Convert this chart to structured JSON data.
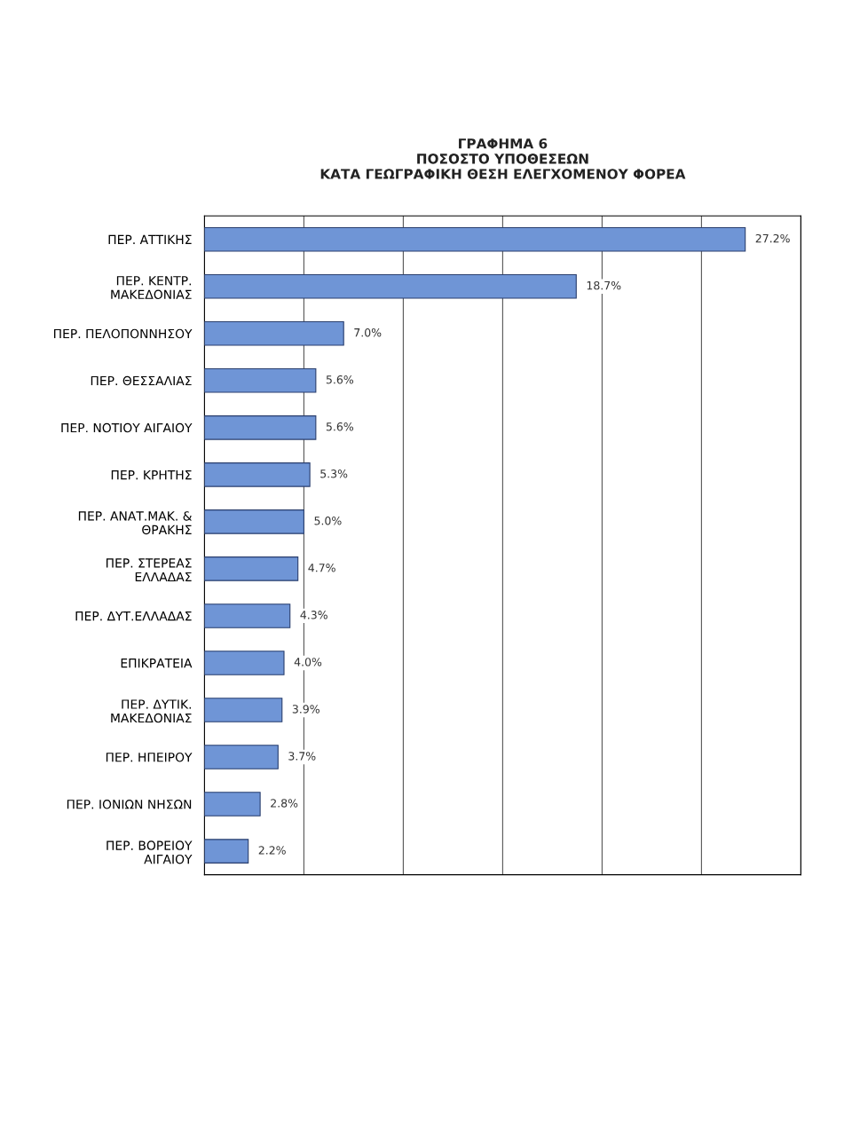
{
  "chart_data": {
    "type": "bar",
    "orientation": "horizontal",
    "title": "ΓΡΑΦΗΜΑ 6\nΠΟΣΟΣΤΟ ΥΠΟΘΕΣΕΩΝ\nΚΑΤΑ ΓΕΩΓΡΑΦΙΚΗ ΘΕΣΗ ΕΛΕΓΧΟΜΕΝΟΥ ΦΟΡΕΑ",
    "categories": [
      "ΠΕΡ. ΑΤΤΙΚΗΣ",
      "ΠΕΡ. ΚΕΝΤΡ.\nΜΑΚΕΔΟΝΙΑΣ",
      "ΠΕΡ. ΠΕΛΟΠΟΝΝΗΣΟΥ",
      "ΠΕΡ. ΘΕΣΣΑΛΙΑΣ",
      "ΠΕΡ. ΝΟΤΙΟΥ ΑΙΓΑΙΟΥ",
      "ΠΕΡ. ΚΡΗΤΗΣ",
      "ΠΕΡ. ΑΝΑΤ.ΜΑΚ. &\nΘΡΑΚΗΣ",
      "ΠΕΡ. ΣΤΕΡΕΑΣ\nΕΛΛΑΔΑΣ",
      "ΠΕΡ. ΔΥΤ.ΕΛΛΑΔΑΣ",
      "ΕΠΙΚΡΑΤΕΙΑ",
      "ΠΕΡ. ΔΥΤΙΚ.\nΜΑΚΕΔΟΝΙΑΣ",
      "ΠΕΡ. ΗΠΕΙΡΟΥ",
      "ΠΕΡ. ΙΟΝΙΩΝ ΝΗΣΩΝ",
      "ΠΕΡ. ΒΟΡΕΙΟΥ\nΑΙΓΑΙΟΥ"
    ],
    "values": [
      27.2,
      18.7,
      7.0,
      5.6,
      5.6,
      5.3,
      5.0,
      4.7,
      4.3,
      4.0,
      3.9,
      3.7,
      2.8,
      2.2
    ],
    "value_labels": [
      "27.2%",
      "18.7%",
      "7.0%",
      "5.6%",
      "5.6%",
      "5.3%",
      "5.0%",
      "4.7%",
      "4.3%",
      "4.0%",
      "3.9%",
      "3.7%",
      "2.8%",
      "2.2%"
    ],
    "color": "#6f95d6",
    "xlim": [
      0,
      30
    ],
    "xticks": [
      {
        "value": 0,
        "label": null
      },
      {
        "value": 5,
        "label": null
      },
      {
        "value": 10,
        "label": null
      },
      {
        "value": 15,
        "label": null
      },
      {
        "value": 20,
        "label": null
      },
      {
        "value": 25,
        "label": null
      },
      {
        "value": 30,
        "label": null
      }
    ],
    "grid": "x",
    "tick_labels": "y"
  }
}
